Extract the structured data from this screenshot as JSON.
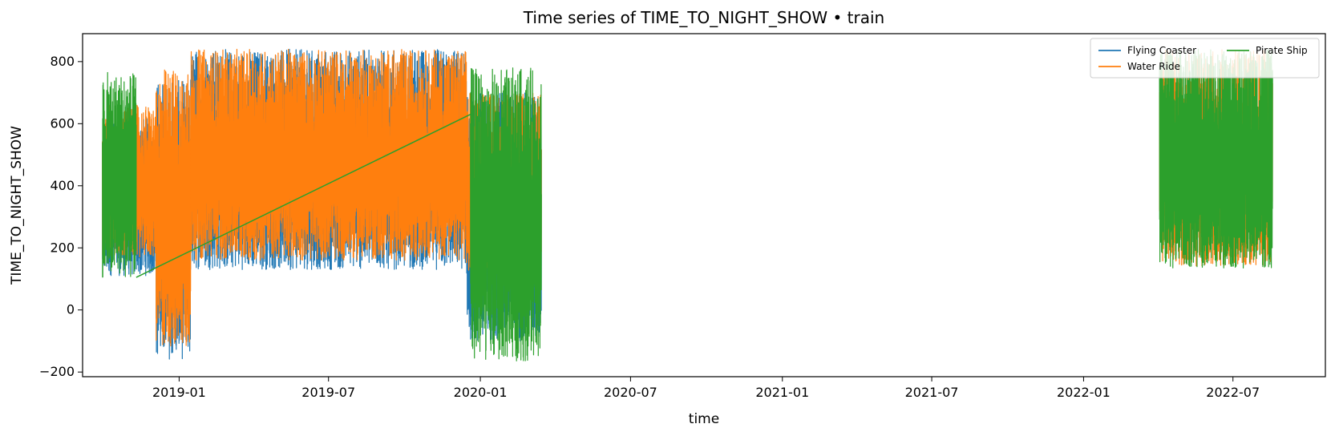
{
  "chart_data": {
    "type": "line",
    "title": "Time series of TIME_TO_NIGHT_SHOW • train",
    "xlabel": "time",
    "ylabel": "TIME_TO_NIGHT_SHOW",
    "x_type": "date",
    "xlim": [
      "2018-09-06",
      "2022-10-21"
    ],
    "ylim": [
      -215,
      890
    ],
    "x_ticks": [
      "2019-01",
      "2019-07",
      "2020-01",
      "2020-07",
      "2021-01",
      "2021-07",
      "2022-01",
      "2022-07"
    ],
    "y_ticks": [
      -200,
      0,
      200,
      400,
      600,
      800
    ],
    "grid": false,
    "legend": {
      "position": "top-right",
      "columns": 2
    },
    "colors": {
      "Flying Coaster": "#1f77b4",
      "Water Ride": "#ff7f0e",
      "Pirate Ship": "#2ca02c"
    },
    "series": [
      {
        "name": "Flying Coaster",
        "segments": [
          {
            "start": "2018-09-30",
            "end": "2018-12-04",
            "low": 110,
            "high": 620
          },
          {
            "start": "2018-12-04",
            "end": "2019-01-15",
            "low": -160,
            "high": 740
          },
          {
            "start": "2019-01-15",
            "end": "2019-12-15",
            "low": 130,
            "high": 840
          },
          {
            "start": "2019-12-15",
            "end": "2020-03-15",
            "low": -100,
            "high": 700
          }
        ]
      },
      {
        "name": "Water Ride",
        "segments": [
          {
            "start": "2018-09-30",
            "end": "2018-12-04",
            "low": 170,
            "high": 660
          },
          {
            "start": "2018-12-04",
            "end": "2019-01-15",
            "low": -120,
            "high": 780
          },
          {
            "start": "2019-01-15",
            "end": "2019-12-15",
            "low": 160,
            "high": 840
          },
          {
            "start": "2019-12-15",
            "end": "2020-03-15",
            "low": 110,
            "high": 700
          },
          {
            "start": "2022-04-03",
            "end": "2022-08-18",
            "low": 140,
            "high": 840
          }
        ]
      },
      {
        "name": "Pirate Ship",
        "segments": [
          {
            "start": "2018-09-30",
            "end": "2018-11-10",
            "low": 105,
            "high": 765
          },
          {
            "start": "2019-12-20",
            "end": "2020-03-15",
            "low": -165,
            "high": 780
          },
          {
            "start": "2022-04-03",
            "end": "2022-08-18",
            "low": 135,
            "high": 840
          }
        ],
        "trend": [
          {
            "x": "2018-11-10",
            "y": 105
          },
          {
            "x": "2019-12-20",
            "y": 630
          }
        ]
      }
    ]
  }
}
